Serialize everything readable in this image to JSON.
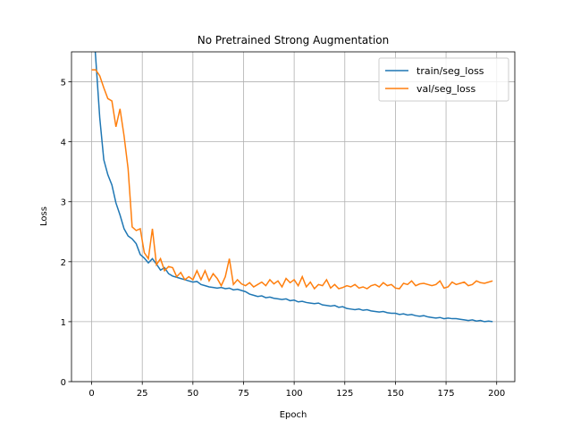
{
  "chart_data": {
    "type": "line",
    "title": "No Pretrained Strong Augmentation",
    "x_label": "Epoch",
    "y_label": "Loss",
    "x": [
      0,
      2,
      4,
      6,
      8,
      10,
      12,
      14,
      16,
      18,
      20,
      22,
      24,
      26,
      28,
      30,
      32,
      34,
      36,
      38,
      40,
      42,
      44,
      46,
      48,
      50,
      52,
      54,
      56,
      58,
      60,
      62,
      64,
      66,
      68,
      70,
      72,
      74,
      76,
      78,
      80,
      82,
      84,
      86,
      88,
      90,
      92,
      94,
      96,
      98,
      100,
      102,
      104,
      106,
      108,
      110,
      112,
      114,
      116,
      118,
      120,
      122,
      124,
      126,
      128,
      130,
      132,
      134,
      136,
      138,
      140,
      142,
      144,
      146,
      148,
      150,
      152,
      154,
      156,
      158,
      160,
      162,
      164,
      166,
      168,
      170,
      172,
      174,
      176,
      178,
      180,
      182,
      184,
      186,
      188,
      190,
      192,
      194,
      196,
      198
    ],
    "series": [
      {
        "name": "train/seg_loss",
        "color": "#1f77b4",
        "values": [
          6.3,
          5.4,
          4.4,
          3.7,
          3.45,
          3.28,
          2.98,
          2.78,
          2.55,
          2.43,
          2.38,
          2.3,
          2.12,
          2.06,
          1.98,
          2.05,
          1.96,
          1.86,
          1.9,
          1.8,
          1.76,
          1.74,
          1.72,
          1.7,
          1.68,
          1.66,
          1.67,
          1.62,
          1.6,
          1.58,
          1.57,
          1.56,
          1.57,
          1.55,
          1.56,
          1.53,
          1.54,
          1.52,
          1.5,
          1.46,
          1.44,
          1.42,
          1.43,
          1.4,
          1.41,
          1.39,
          1.38,
          1.37,
          1.38,
          1.35,
          1.36,
          1.33,
          1.34,
          1.32,
          1.31,
          1.3,
          1.31,
          1.28,
          1.27,
          1.26,
          1.27,
          1.24,
          1.25,
          1.22,
          1.21,
          1.2,
          1.21,
          1.19,
          1.2,
          1.18,
          1.17,
          1.16,
          1.17,
          1.15,
          1.14,
          1.14,
          1.12,
          1.13,
          1.11,
          1.12,
          1.1,
          1.09,
          1.1,
          1.08,
          1.07,
          1.06,
          1.07,
          1.05,
          1.06,
          1.05,
          1.05,
          1.04,
          1.03,
          1.02,
          1.03,
          1.01,
          1.02,
          1.0,
          1.01,
          1.0
        ]
      },
      {
        "name": "val/seg_loss",
        "color": "#ff7f0e",
        "values": [
          5.2,
          5.2,
          5.1,
          4.9,
          4.72,
          4.68,
          4.25,
          4.55,
          4.1,
          3.55,
          2.58,
          2.52,
          2.55,
          2.15,
          2.05,
          2.55,
          1.95,
          2.05,
          1.85,
          1.92,
          1.9,
          1.75,
          1.82,
          1.7,
          1.75,
          1.7,
          1.85,
          1.7,
          1.85,
          1.68,
          1.8,
          1.72,
          1.6,
          1.75,
          2.05,
          1.62,
          1.7,
          1.63,
          1.6,
          1.65,
          1.58,
          1.62,
          1.66,
          1.6,
          1.7,
          1.63,
          1.68,
          1.58,
          1.72,
          1.65,
          1.7,
          1.6,
          1.75,
          1.58,
          1.66,
          1.55,
          1.62,
          1.6,
          1.7,
          1.56,
          1.62,
          1.55,
          1.57,
          1.6,
          1.58,
          1.62,
          1.56,
          1.58,
          1.55,
          1.6,
          1.62,
          1.58,
          1.65,
          1.6,
          1.62,
          1.56,
          1.55,
          1.64,
          1.62,
          1.68,
          1.6,
          1.63,
          1.64,
          1.62,
          1.6,
          1.62,
          1.68,
          1.56,
          1.58,
          1.66,
          1.62,
          1.64,
          1.66,
          1.6,
          1.62,
          1.68,
          1.65,
          1.64,
          1.66,
          1.68
        ]
      }
    ],
    "xlim": [
      -9.95,
      208.95
    ],
    "xticks": [
      0,
      25,
      50,
      75,
      100,
      125,
      150,
      175,
      200
    ],
    "ylim": [
      0,
      5.5
    ],
    "yticks": [
      0,
      1,
      2,
      3,
      4,
      5
    ],
    "grid": true,
    "legend": "upper right"
  }
}
